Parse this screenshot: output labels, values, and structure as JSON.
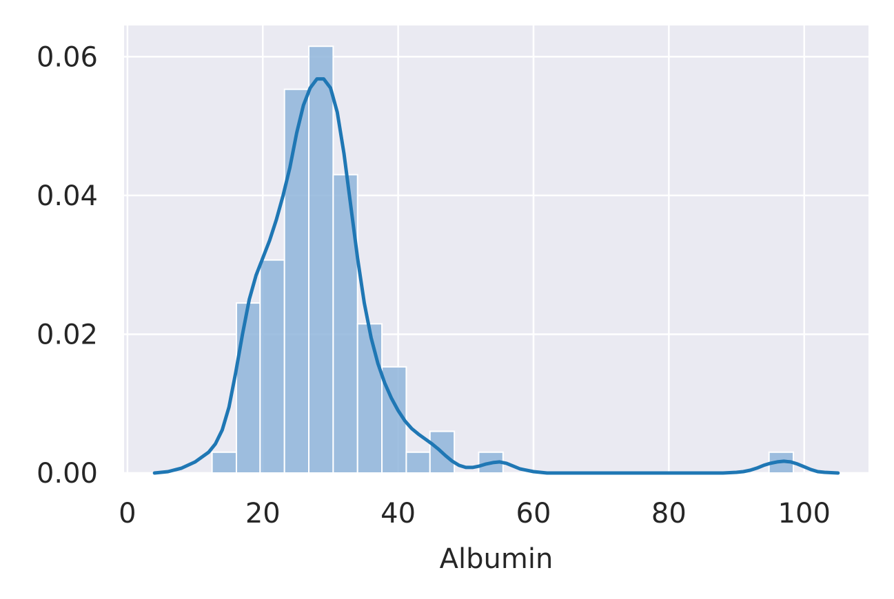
{
  "chart_data": {
    "type": "histogram",
    "title": "",
    "xlabel": "Albumin",
    "ylabel": "",
    "xlim": [
      -0.5,
      109.5
    ],
    "ylim": [
      0,
      0.0645
    ],
    "xticks": [
      0,
      20,
      40,
      60,
      80,
      100
    ],
    "yticks": [
      0.0,
      0.02,
      0.04,
      0.06
    ],
    "xtick_labels": [
      "0",
      "20",
      "40",
      "60",
      "80",
      "100"
    ],
    "ytick_labels": [
      "0.00",
      "0.02",
      "0.04",
      "0.06"
    ],
    "grid": true,
    "colors": {
      "background": "#eaeaf2",
      "grid": "#ffffff",
      "bar_fill": "#8fb5da",
      "bar_edge": "#ffffff",
      "kde_line": "#1f77b4"
    },
    "bars": [
      {
        "x0": 12.5,
        "x1": 16.1,
        "density": 0.003
      },
      {
        "x0": 16.1,
        "x1": 19.6,
        "density": 0.0245
      },
      {
        "x0": 19.6,
        "x1": 23.2,
        "density": 0.0307
      },
      {
        "x0": 23.2,
        "x1": 26.8,
        "density": 0.0553
      },
      {
        "x0": 26.8,
        "x1": 30.4,
        "density": 0.0615
      },
      {
        "x0": 30.4,
        "x1": 34.0,
        "density": 0.043
      },
      {
        "x0": 34.0,
        "x1": 37.6,
        "density": 0.0215
      },
      {
        "x0": 37.6,
        "x1": 41.2,
        "density": 0.0153
      },
      {
        "x0": 41.2,
        "x1": 44.7,
        "density": 0.003
      },
      {
        "x0": 44.7,
        "x1": 48.3,
        "density": 0.006
      },
      {
        "x0": 51.9,
        "x1": 55.5,
        "density": 0.003
      },
      {
        "x0": 94.8,
        "x1": 98.4,
        "density": 0.003
      }
    ],
    "kde": {
      "x": [
        4,
        6,
        8,
        10,
        12,
        13,
        14,
        15,
        16,
        17,
        18,
        19,
        20,
        21,
        22,
        23,
        24,
        25,
        26,
        27,
        28,
        29,
        30,
        31,
        32,
        33,
        34,
        35,
        36,
        37,
        38,
        39,
        40,
        41,
        42,
        43,
        44,
        45,
        46,
        47,
        48,
        49,
        50,
        51,
        52,
        53,
        54,
        55,
        56,
        57,
        58,
        60,
        62,
        65,
        70,
        75,
        80,
        85,
        88,
        90,
        91,
        92,
        93,
        94,
        95,
        96,
        97,
        98,
        99,
        100,
        101,
        102,
        103,
        105
      ],
      "y": [
        0.0,
        0.0002,
        0.0007,
        0.0016,
        0.003,
        0.0042,
        0.0062,
        0.0095,
        0.0145,
        0.02,
        0.025,
        0.0285,
        0.031,
        0.0335,
        0.0365,
        0.04,
        0.044,
        0.049,
        0.053,
        0.0555,
        0.0568,
        0.0568,
        0.0555,
        0.052,
        0.046,
        0.0385,
        0.031,
        0.0245,
        0.0195,
        0.0158,
        0.013,
        0.0108,
        0.009,
        0.0075,
        0.0064,
        0.0056,
        0.0049,
        0.0042,
        0.0034,
        0.0025,
        0.0017,
        0.0011,
        0.0008,
        0.0008,
        0.001,
        0.0013,
        0.0015,
        0.0016,
        0.0014,
        0.001,
        0.0006,
        0.0002,
        0.0,
        0.0,
        0.0,
        0.0,
        0.0,
        0.0,
        0.0,
        0.0001,
        0.0002,
        0.0004,
        0.0007,
        0.0011,
        0.0014,
        0.0016,
        0.0017,
        0.0016,
        0.0013,
        0.0009,
        0.0005,
        0.0002,
        0.0001,
        0.0
      ]
    }
  }
}
